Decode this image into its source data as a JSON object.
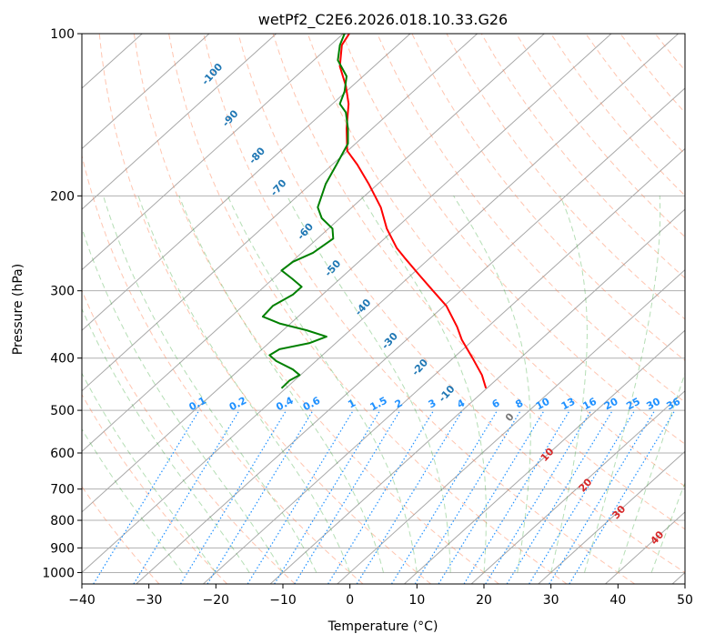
{
  "chart_data": {
    "type": "line",
    "chart_kind": "skew-T log-P diagram",
    "title": "wetPf2_C2E6.2026.018.10.33.G26",
    "xlabel": "Temperature (°C)",
    "ylabel": "Pressure (hPa)",
    "xlim": [
      -40,
      50
    ],
    "ylim": [
      1050,
      100
    ],
    "y_scale": "log",
    "x_ticks": [
      -40,
      -30,
      -20,
      -10,
      0,
      10,
      20,
      30,
      40,
      50
    ],
    "x_tick_labels": [
      "−40",
      "−30",
      "−20",
      "−10",
      "0",
      "10",
      "20",
      "30",
      "40",
      "50"
    ],
    "y_ticks": [
      100,
      200,
      300,
      400,
      500,
      600,
      700,
      800,
      900,
      1000
    ],
    "y_tick_labels": [
      "100",
      "200",
      "300",
      "400",
      "500",
      "600",
      "700",
      "800",
      "900",
      "1000"
    ],
    "grid": true,
    "skew_reference": {
      "pressure": 1000,
      "x": -37,
      "pressure_top": 100,
      "x_top": 52
    },
    "isotherms_c": [
      -150,
      -140,
      -130,
      -120,
      -110,
      -100,
      -90,
      -80,
      -70,
      -60,
      -50,
      -40,
      -30,
      -20,
      -10,
      0,
      10,
      20,
      30,
      40,
      50
    ],
    "series": [
      {
        "color": "#ff0000",
        "points": [
          {
            "pressure": 455,
            "x": 20.3
          },
          {
            "pressure": 430,
            "x": 19.7
          },
          {
            "pressure": 400,
            "x": 18.3
          },
          {
            "pressure": 370,
            "x": 16.7
          },
          {
            "pressure": 350,
            "x": 16.0
          },
          {
            "pressure": 320,
            "x": 14.4
          },
          {
            "pressure": 300,
            "x": 12.4
          },
          {
            "pressure": 280,
            "x": 10.3
          },
          {
            "pressure": 260,
            "x": 8.1
          },
          {
            "pressure": 250,
            "x": 7.0
          },
          {
            "pressure": 230,
            "x": 5.5
          },
          {
            "pressure": 210,
            "x": 4.6
          },
          {
            "pressure": 190,
            "x": 2.8
          },
          {
            "pressure": 175,
            "x": 1.1
          },
          {
            "pressure": 165,
            "x": -0.4
          },
          {
            "pressure": 150,
            "x": -0.5
          },
          {
            "pressure": 135,
            "x": -0.2
          },
          {
            "pressure": 125,
            "x": -0.6
          },
          {
            "pressure": 115,
            "x": -1.5
          },
          {
            "pressure": 105,
            "x": -1.2
          },
          {
            "pressure": 100,
            "x": -0.1
          }
        ]
      },
      {
        "color": "#008000",
        "points": [
          {
            "pressure": 455,
            "x": -10.2
          },
          {
            "pressure": 440,
            "x": -9.0
          },
          {
            "pressure": 430,
            "x": -7.5
          },
          {
            "pressure": 420,
            "x": -8.5
          },
          {
            "pressure": 405,
            "x": -11.0
          },
          {
            "pressure": 395,
            "x": -12.0
          },
          {
            "pressure": 385,
            "x": -10.5
          },
          {
            "pressure": 375,
            "x": -6.0
          },
          {
            "pressure": 365,
            "x": -3.5
          },
          {
            "pressure": 355,
            "x": -6.5
          },
          {
            "pressure": 345,
            "x": -10.5
          },
          {
            "pressure": 335,
            "x": -13.0
          },
          {
            "pressure": 320,
            "x": -11.5
          },
          {
            "pressure": 305,
            "x": -8.5
          },
          {
            "pressure": 295,
            "x": -7.2
          },
          {
            "pressure": 285,
            "x": -8.6
          },
          {
            "pressure": 275,
            "x": -10.2
          },
          {
            "pressure": 265,
            "x": -8.5
          },
          {
            "pressure": 255,
            "x": -5.5
          },
          {
            "pressure": 240,
            "x": -2.5
          },
          {
            "pressure": 230,
            "x": -2.6
          },
          {
            "pressure": 220,
            "x": -4.2
          },
          {
            "pressure": 210,
            "x": -4.8
          },
          {
            "pressure": 190,
            "x": -3.6
          },
          {
            "pressure": 175,
            "x": -2.0
          },
          {
            "pressure": 160,
            "x": -0.3
          },
          {
            "pressure": 150,
            "x": -0.3
          },
          {
            "pressure": 140,
            "x": -0.6
          },
          {
            "pressure": 135,
            "x": -1.5
          },
          {
            "pressure": 128,
            "x": -0.8
          },
          {
            "pressure": 120,
            "x": -0.5
          },
          {
            "pressure": 112,
            "x": -1.8
          },
          {
            "pressure": 105,
            "x": -1.5
          },
          {
            "pressure": 100,
            "x": -0.8
          }
        ]
      }
    ],
    "dry_adiabat_labels": [
      {
        "text": "-100",
        "pressure": 120,
        "x": -20.2
      },
      {
        "text": "-90",
        "pressure": 145,
        "x": -17.5
      },
      {
        "text": "-80",
        "pressure": 170,
        "x": -13.5
      },
      {
        "text": "-70",
        "pressure": 195,
        "x": -10.3
      },
      {
        "text": "-60",
        "pressure": 235,
        "x": -6.3
      },
      {
        "text": "-50",
        "pressure": 275,
        "x": -2.2
      },
      {
        "text": "-40",
        "pressure": 325,
        "x": 2.3
      },
      {
        "text": "-30",
        "pressure": 375,
        "x": 6.3
      },
      {
        "text": "-20",
        "pressure": 420,
        "x": 10.8
      },
      {
        "text": "-10",
        "pressure": 470,
        "x": 14.8
      }
    ],
    "mixing_ratio_labels": [
      {
        "text": "0.1",
        "x": -22.5
      },
      {
        "text": "0.2",
        "x": -16.5
      },
      {
        "text": "0.4",
        "x": -9.5
      },
      {
        "text": "0.6",
        "x": -5.5
      },
      {
        "text": "1",
        "x": 0.5
      },
      {
        "text": "1.5",
        "x": 4.5
      },
      {
        "text": "2",
        "x": 7.5
      },
      {
        "text": "3",
        "x": 12.5
      },
      {
        "text": "4",
        "x": 16.8
      },
      {
        "text": "6",
        "x": 22.0
      },
      {
        "text": "8",
        "x": 25.5
      },
      {
        "text": "10",
        "x": 29.0
      },
      {
        "text": "13",
        "x": 32.8
      },
      {
        "text": "16",
        "x": 36.0
      },
      {
        "text": "20",
        "x": 39.2
      },
      {
        "text": "25",
        "x": 42.5
      },
      {
        "text": "30",
        "x": 45.5
      },
      {
        "text": "36",
        "x": 48.5
      }
    ],
    "mixing_ratio_label_pressure": 500,
    "moist_adiabat_labels": [
      {
        "text": "0",
        "pressure": 520,
        "x": 24.2
      },
      {
        "text": "10",
        "pressure": 610,
        "x": 29.8
      },
      {
        "text": "20",
        "pressure": 695,
        "x": 35.5
      },
      {
        "text": "30",
        "pressure": 780,
        "x": 40.5
      },
      {
        "text": "40",
        "pressure": 870,
        "x": 46.2
      }
    ],
    "colors": {
      "temperature": "#ff0000",
      "dewpoint": "#008000",
      "dry_adiabat": "#ff7f50",
      "moist_adiabat": "#2ca02c",
      "mixing_ratio": "#1e90ff",
      "isotherm": "#808080"
    }
  }
}
